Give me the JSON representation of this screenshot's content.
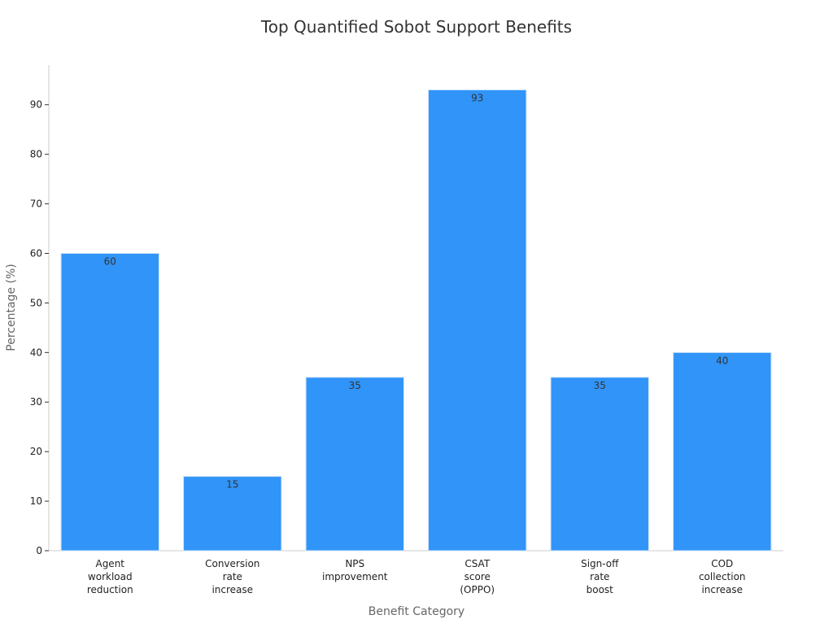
{
  "chart_data": {
    "type": "bar",
    "title": "Top Quantified Sobot Support Benefits",
    "xlabel": "Benefit Category",
    "ylabel": "Percentage (%)",
    "categories": [
      [
        "Agent",
        "workload",
        "reduction"
      ],
      [
        "Conversion",
        "rate",
        "increase"
      ],
      [
        "NPS",
        "improvement"
      ],
      [
        "CSAT",
        "score",
        "(OPPO)"
      ],
      [
        "Sign-off",
        "rate",
        "boost"
      ],
      [
        "COD",
        "collection",
        "increase"
      ]
    ],
    "values": [
      60,
      15,
      35,
      93,
      35,
      40
    ],
    "value_labels": [
      "60",
      "15",
      "35",
      "93",
      "35",
      "40"
    ],
    "ylim": [
      0,
      98
    ],
    "yticks": [
      0,
      10,
      20,
      30,
      40,
      50,
      60,
      70,
      80,
      90
    ],
    "ytick_labels": [
      "0",
      "10",
      "20",
      "30",
      "40",
      "50",
      "60",
      "70",
      "80",
      "90"
    ],
    "bar_color": "#3094f8",
    "grid": false,
    "legend": "none"
  }
}
